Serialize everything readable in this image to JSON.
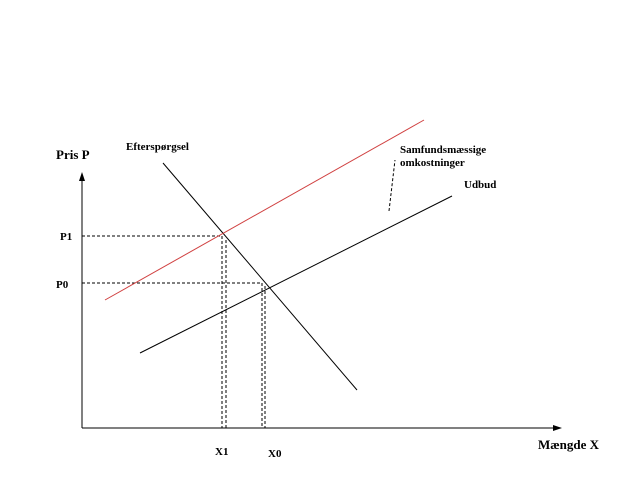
{
  "axes": {
    "y_label": "Pris  P",
    "x_label": "Mængde  X"
  },
  "curves": {
    "demand": "Efterspørgsel",
    "supply": "Udbud",
    "social_cost": [
      "Samfundsmæssige",
      "omkostninger"
    ]
  },
  "levels": {
    "prices": [
      "P1",
      "P0"
    ],
    "quantities": [
      "X1",
      "X0"
    ]
  }
}
